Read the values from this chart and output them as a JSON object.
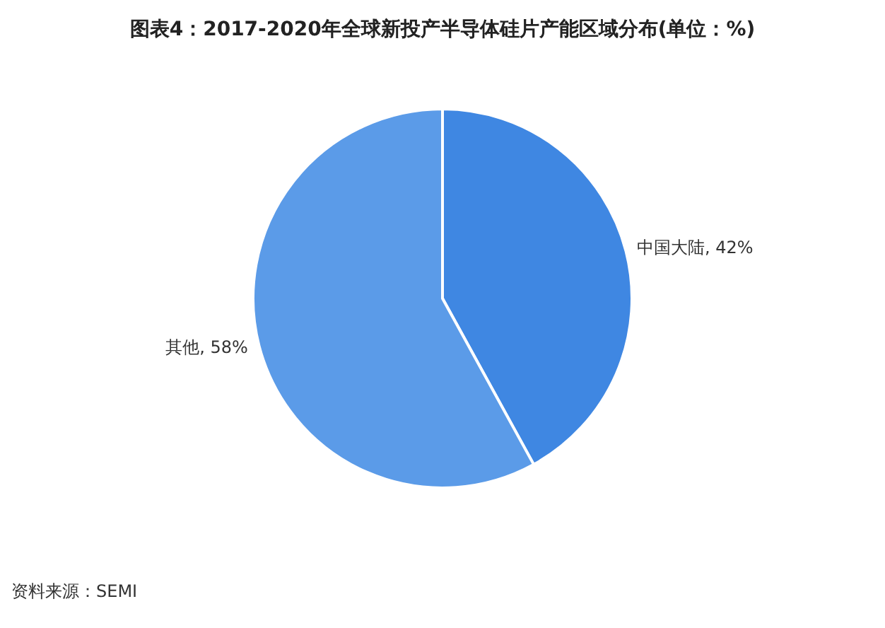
{
  "chart_data": {
    "type": "pie",
    "title": "图表4：2017-2020年全球新投产半导体硅片产能区域分布(单位：%)",
    "categories": [
      "中国大陆",
      "其他"
    ],
    "values": [
      42,
      58
    ],
    "value_labels": [
      "42%",
      "58%"
    ],
    "colors": [
      "#3f87e2",
      "#5b9be8"
    ],
    "legend": false,
    "annotations": [
      "资料来源：SEMI"
    ]
  }
}
